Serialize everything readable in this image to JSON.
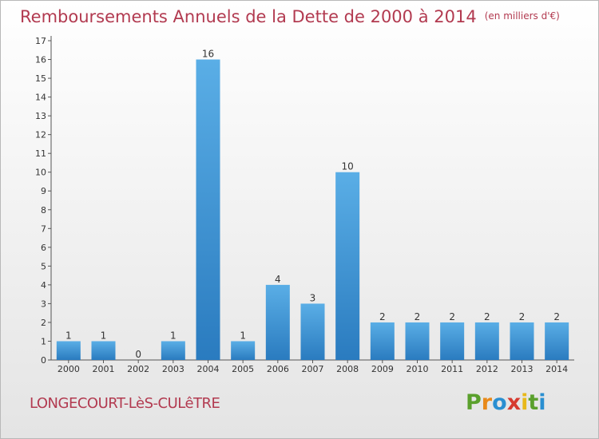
{
  "header": {
    "title": "Remboursements Annuels de la Dette de 2000 à 2014",
    "unit": "(en milliers d'€)"
  },
  "footer": {
    "commune": "LONGECOURT-LèS-CULêTRE",
    "brand_letters": [
      {
        "ch": "P",
        "color": "#5aa02c"
      },
      {
        "ch": "r",
        "color": "#e8891a"
      },
      {
        "ch": "o",
        "color": "#2a8fd1"
      },
      {
        "ch": "x",
        "color": "#d63a2f"
      },
      {
        "ch": "i",
        "color": "#e8b81a"
      },
      {
        "ch": "t",
        "color": "#5aa02c"
      },
      {
        "ch": "i",
        "color": "#2a8fd1"
      }
    ]
  },
  "chart_data": {
    "type": "bar",
    "categories": [
      "2000",
      "2001",
      "2002",
      "2003",
      "2004",
      "2005",
      "2006",
      "2007",
      "2008",
      "2009",
      "2010",
      "2011",
      "2012",
      "2013",
      "2014"
    ],
    "values": [
      1,
      1,
      0,
      1,
      16,
      1,
      4,
      3,
      10,
      2,
      2,
      2,
      2,
      2,
      2
    ],
    "data_labels": [
      "1",
      "1",
      "0",
      "1",
      "16",
      "1",
      "4",
      "3",
      "10",
      "2",
      "2",
      "2",
      "2",
      "2",
      "2"
    ],
    "yticks": [
      "0",
      "1",
      "2",
      "3",
      "4",
      "5",
      "6",
      "7",
      "8",
      "9",
      "10",
      "11",
      "12",
      "13",
      "14",
      "15",
      "16",
      "17"
    ],
    "ylim": [
      0,
      17
    ],
    "grid": false,
    "colors": {
      "bar_light": "#5aaee6",
      "bar_dark": "#2a7bbf",
      "text": "#333333",
      "axis": "#555555"
    }
  }
}
